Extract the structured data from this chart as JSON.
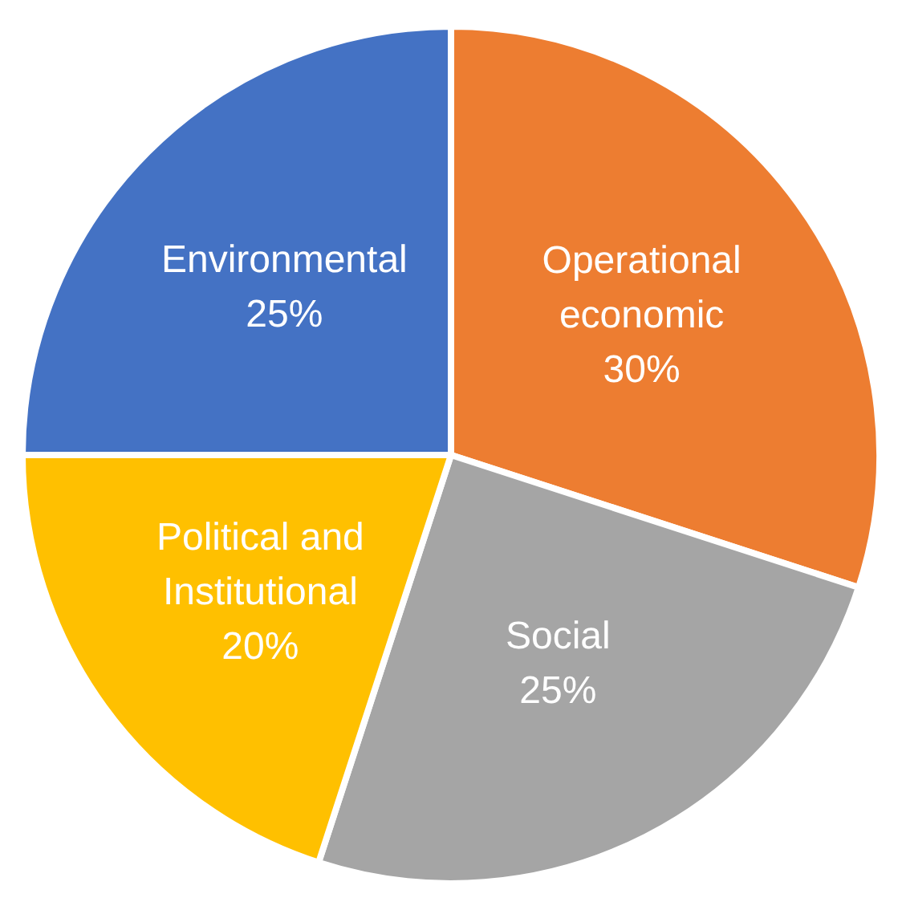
{
  "chart_data": {
    "type": "pie",
    "categories": [
      "Operational economic",
      "Social",
      "Political and Institutional",
      "Environmental"
    ],
    "values": [
      30,
      25,
      20,
      25
    ],
    "value_labels": [
      "30%",
      "25%",
      "20%",
      "25%"
    ],
    "colors": [
      "#ed7d31",
      "#a5a5a5",
      "#ffc000",
      "#4472c4"
    ],
    "legend": false
  }
}
